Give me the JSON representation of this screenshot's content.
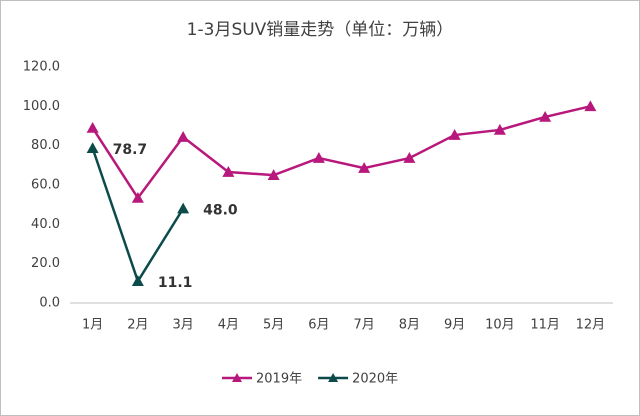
{
  "chart_data": {
    "type": "line",
    "title": "1-3月SUV销量走势（单位：万辆）",
    "categories": [
      "1月",
      "2月",
      "3月",
      "4月",
      "5月",
      "6月",
      "7月",
      "8月",
      "9月",
      "10月",
      "11月",
      "12月"
    ],
    "series": [
      {
        "name": "2019年",
        "color": "#b8187c",
        "values": [
          89.0,
          53.4,
          84.4,
          66.6,
          65.0,
          73.7,
          68.6,
          73.7,
          85.4,
          88.0,
          94.6,
          100.0
        ]
      },
      {
        "name": "2020年",
        "color": "#0d4b4b",
        "values": [
          78.7,
          11.1,
          48.0,
          null,
          null,
          null,
          null,
          null,
          null,
          null,
          null,
          null
        ],
        "value_labels": [
          "78.7",
          "11.1",
          "48.0",
          null,
          null,
          null,
          null,
          null,
          null,
          null,
          null,
          null
        ]
      }
    ],
    "ylim": [
      0,
      120
    ],
    "yticks": [
      {
        "value": 0,
        "label": "0.0"
      },
      {
        "value": 20,
        "label": "20.0"
      },
      {
        "value": 40,
        "label": "40.0"
      },
      {
        "value": 60,
        "label": "60.0"
      },
      {
        "value": 80,
        "label": "80.0"
      },
      {
        "value": 100,
        "label": "100.0"
      },
      {
        "value": 120,
        "label": "120.0"
      }
    ],
    "legend": "bottom"
  }
}
